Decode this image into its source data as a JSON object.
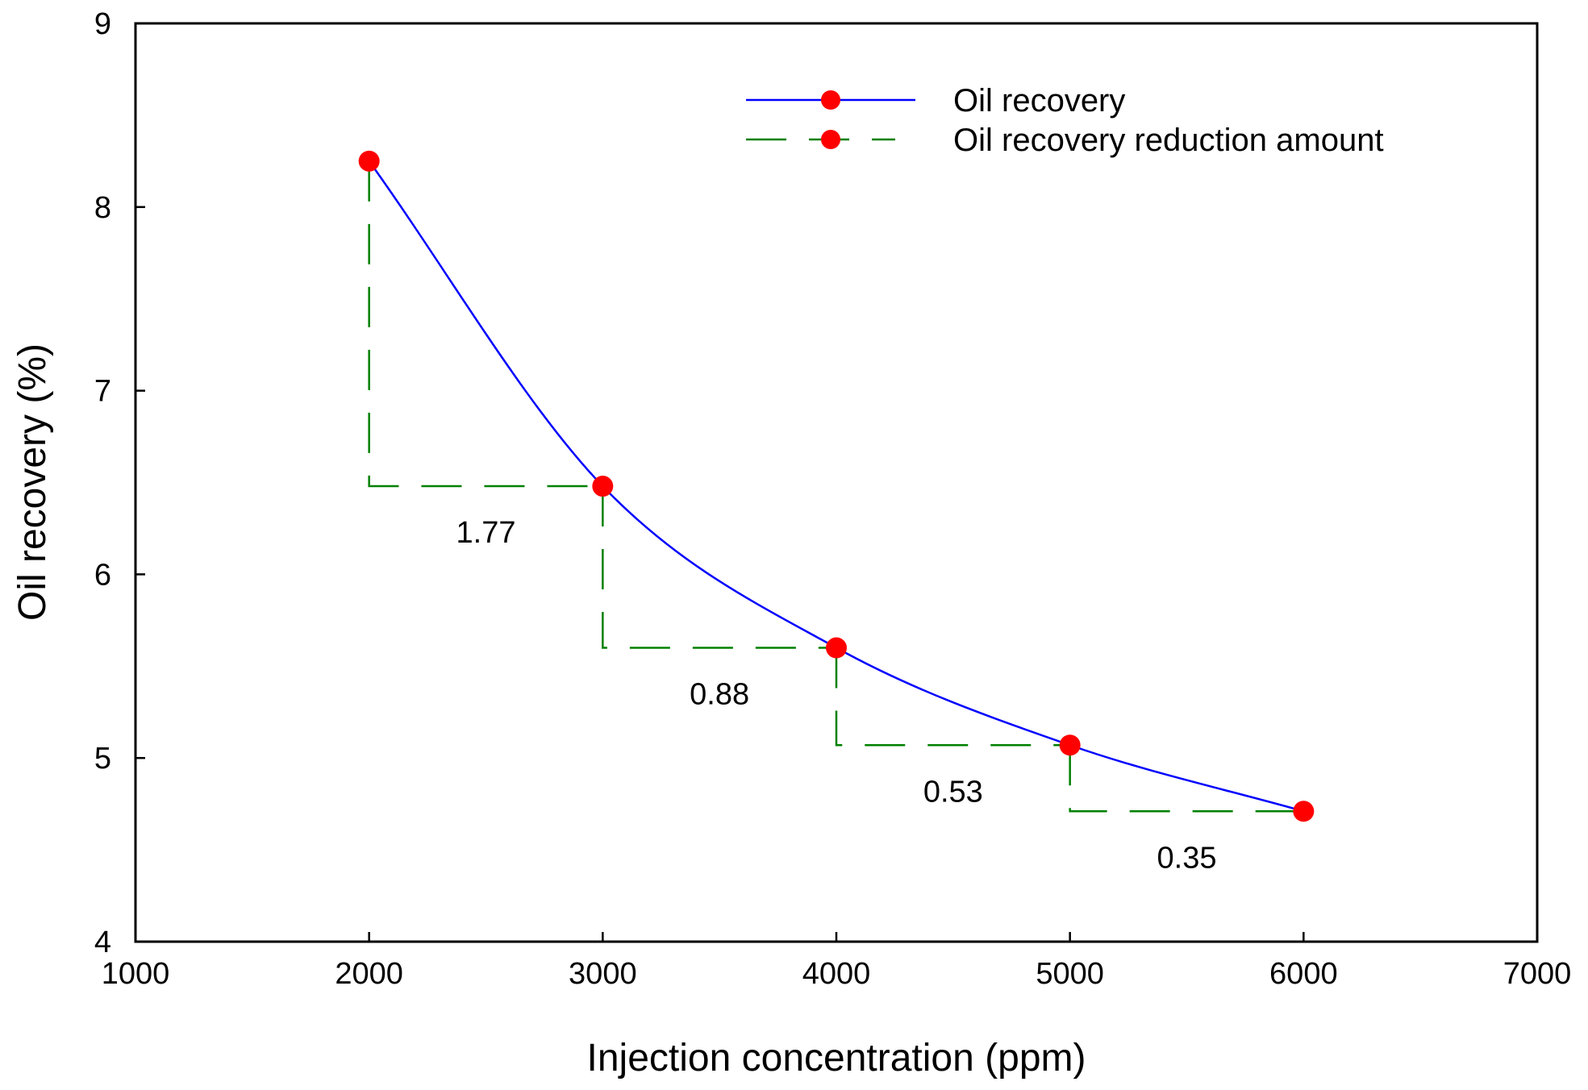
{
  "chart_data": {
    "type": "line",
    "title": "",
    "xlabel": "Injection concentration (ppm)",
    "ylabel": "Oil recovery (%)",
    "xlim": [
      1000,
      7000
    ],
    "ylim": [
      4,
      9
    ],
    "xticks": [
      1000,
      2000,
      3000,
      4000,
      5000,
      6000,
      7000
    ],
    "yticks": [
      4,
      5,
      6,
      7,
      8,
      9
    ],
    "grid": false,
    "legend_position": "top-right",
    "colors": {
      "oil_recovery": "#0000ff",
      "reduction": "#008000",
      "marker": "#ff0000"
    },
    "series": [
      {
        "name": "Oil recovery",
        "style": "solid",
        "x": [
          2000,
          3000,
          4000,
          5000,
          6000
        ],
        "y": [
          8.25,
          6.48,
          5.6,
          5.07,
          4.71
        ]
      },
      {
        "name": "Oil recovery reduction amount",
        "style": "dashed",
        "steps": [
          {
            "x_from": 2000,
            "x_to": 3000,
            "y_high": 8.25,
            "y_low": 6.48,
            "label": "1.77"
          },
          {
            "x_from": 3000,
            "x_to": 4000,
            "y_high": 6.48,
            "y_low": 5.6,
            "label": "0.88"
          },
          {
            "x_from": 4000,
            "x_to": 5000,
            "y_high": 5.6,
            "y_low": 5.07,
            "label": "0.53"
          },
          {
            "x_from": 5000,
            "x_to": 6000,
            "y_high": 5.07,
            "y_low": 4.71,
            "label": "0.35"
          }
        ]
      }
    ]
  }
}
